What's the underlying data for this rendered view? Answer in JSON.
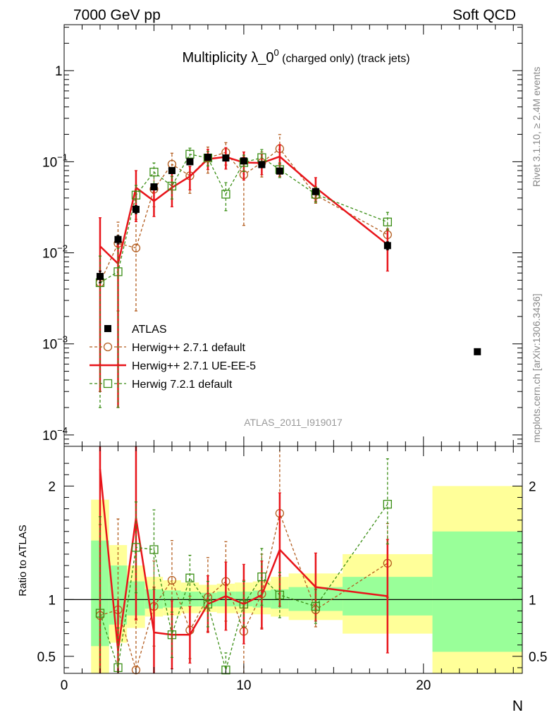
{
  "header": {
    "left": "7000 GeV pp",
    "right": "Soft QCD"
  },
  "side_labels": {
    "top": "Rivet 3.1.10, ≥ 2.4M events",
    "bottom": "mcplots.cern.ch [arXiv:1306.3436]"
  },
  "analysis_id": "ATLAS_2011_I919017",
  "chart_data": [
    {
      "type": "scatter",
      "title": {
        "main": "Multiplicity λ_0",
        "sup": "0",
        "suffix": " (charged only) (track jets)"
      },
      "yscale": "log",
      "xlim": [
        0,
        25.5
      ],
      "ylim": [
        7.5e-05,
        3.2
      ],
      "y_ticks": [
        {
          "value": 0.0001,
          "base": "10",
          "exp": "−4"
        },
        {
          "value": 0.001,
          "base": "10",
          "exp": "−3"
        },
        {
          "value": 0.01,
          "base": "10",
          "exp": "−2"
        },
        {
          "value": 0.1,
          "base": "10",
          "exp": "−1"
        },
        {
          "value": 1,
          "base": "1",
          "exp": ""
        }
      ],
      "legend_position": "middle-left",
      "series": [
        {
          "name": "ATLAS",
          "color": "#000000",
          "marker": "filled-square",
          "x": [
            2,
            3,
            4,
            5,
            6,
            7,
            8,
            9,
            10,
            11,
            12,
            14,
            18
          ],
          "y": [
            0.0055,
            0.014,
            0.03,
            0.053,
            0.08,
            0.1,
            0.112,
            0.11,
            0.102,
            0.093,
            0.079,
            0.047,
            0.012
          ],
          "err": [
            0.0008,
            0.0015,
            0.003,
            0.004,
            0.005,
            0.006,
            0.007,
            0.007,
            0.006,
            0.006,
            0.005,
            0.003,
            0.0012
          ]
        },
        {
          "name": "Herwig++ 2.7.1 default",
          "color": "#b35c1e",
          "marker": "open-circle",
          "line": "dashed",
          "x": [
            2,
            3,
            4,
            5,
            6,
            7,
            8,
            9,
            10,
            11,
            12,
            14,
            18
          ],
          "y": [
            0.0047,
            0.0127,
            0.0113,
            0.05,
            0.094,
            0.07,
            0.11,
            0.127,
            0.072,
            0.098,
            0.139,
            0.043,
            0.0158
          ],
          "err_lo": [
            0.0044,
            0.0104,
            0.009,
            0.018,
            0.025,
            0.025,
            0.035,
            0.035,
            0.052,
            0.03,
            0.045,
            0.008,
            0.004
          ],
          "err_hi": [
            0.0045,
            0.009,
            0.012,
            0.02,
            0.03,
            0.03,
            0.035,
            0.035,
            0.04,
            0.03,
            0.06,
            0.01,
            0.004
          ]
        },
        {
          "name": "Herwig++ 2.7.1 UE-EE-5",
          "color": "#e8141a",
          "marker": "none",
          "line": "solid",
          "x": [
            2,
            3,
            4,
            5,
            6,
            7,
            8,
            9,
            10,
            11,
            12,
            14,
            18
          ],
          "y": [
            0.0118,
            0.0076,
            0.052,
            0.037,
            0.052,
            0.069,
            0.107,
            0.113,
            0.098,
            0.097,
            0.114,
            0.052,
            0.0123
          ],
          "err_lo": [
            0.0115,
            0.0074,
            0.03,
            0.012,
            0.02,
            0.02,
            0.025,
            0.03,
            0.035,
            0.025,
            0.045,
            0.015,
            0.006
          ],
          "err_hi": [
            0.0125,
            0.006,
            0.028,
            0.015,
            0.025,
            0.02,
            0.03,
            0.03,
            0.03,
            0.025,
            0.04,
            0.015,
            0.006
          ]
        },
        {
          "name": "Herwig 7.2.1 default",
          "color": "#3a8e15",
          "marker": "open-square",
          "line": "dashed",
          "x": [
            2,
            3,
            4,
            5,
            6,
            7,
            8,
            9,
            10,
            11,
            12,
            14,
            18
          ],
          "y": [
            0.0047,
            0.0062,
            0.043,
            0.077,
            0.054,
            0.121,
            0.11,
            0.044,
            0.098,
            0.111,
            0.082,
            0.044,
            0.0218
          ],
          "err_lo": [
            0.0045,
            0.006,
            0.012,
            0.02,
            0.015,
            0.02,
            0.02,
            0.015,
            0.02,
            0.025,
            0.015,
            0.008,
            0.004
          ],
          "err_hi": [
            0.0045,
            0.005,
            0.012,
            0.02,
            0.015,
            0.02,
            0.02,
            0.015,
            0.02,
            0.025,
            0.015,
            0.008,
            0.006
          ]
        },
        {
          "name": "ATLAS",
          "color": "#000000",
          "marker": "filled-square",
          "x": [
            23
          ],
          "y": [
            0.00082
          ],
          "err": [
            0
          ]
        }
      ]
    },
    {
      "type": "scatter",
      "ylabel": "Ratio to ATLAS",
      "xlabel": "N",
      "xlim": [
        0,
        25.5
      ],
      "ylim": [
        0.35,
        2.35
      ],
      "x_ticks": [
        0,
        10,
        20
      ],
      "y_ticks": [
        0.5,
        1,
        2
      ],
      "reference": 1,
      "bands": [
        {
          "x0": 1.5,
          "x1": 2.5,
          "yellow": [
            0.35,
            1.88
          ],
          "green": [
            0.59,
            1.52
          ]
        },
        {
          "x0": 2.5,
          "x1": 3.5,
          "yellow": [
            0.62,
            1.48
          ],
          "green": [
            0.78,
            1.3
          ]
        },
        {
          "x0": 3.5,
          "x1": 4.5,
          "yellow": [
            0.75,
            1.3
          ],
          "green": [
            0.86,
            1.16
          ]
        },
        {
          "x0": 4.5,
          "x1": 5.5,
          "yellow": [
            0.85,
            1.2
          ],
          "green": [
            0.92,
            1.09
          ]
        },
        {
          "x0": 5.5,
          "x1": 6.5,
          "yellow": [
            0.86,
            1.17
          ],
          "green": [
            0.93,
            1.08
          ]
        },
        {
          "x0": 6.5,
          "x1": 7.5,
          "yellow": [
            0.88,
            1.15
          ],
          "green": [
            0.94,
            1.07
          ]
        },
        {
          "x0": 7.5,
          "x1": 8.5,
          "yellow": [
            0.89,
            1.13
          ],
          "green": [
            0.94,
            1.06
          ]
        },
        {
          "x0": 8.5,
          "x1": 9.5,
          "yellow": [
            0.88,
            1.14
          ],
          "green": [
            0.94,
            1.07
          ]
        },
        {
          "x0": 9.5,
          "x1": 10.5,
          "yellow": [
            0.88,
            1.15
          ],
          "green": [
            0.94,
            1.07
          ]
        },
        {
          "x0": 10.5,
          "x1": 11.5,
          "yellow": [
            0.87,
            1.16
          ],
          "green": [
            0.93,
            1.08
          ]
        },
        {
          "x0": 11.5,
          "x1": 12.5,
          "yellow": [
            0.85,
            1.2
          ],
          "green": [
            0.92,
            1.09
          ]
        },
        {
          "x0": 12.5,
          "x1": 15.5,
          "yellow": [
            0.82,
            1.23
          ],
          "green": [
            0.9,
            1.11
          ]
        },
        {
          "x0": 15.5,
          "x1": 20.5,
          "yellow": [
            0.7,
            1.4
          ],
          "green": [
            0.86,
            1.2
          ]
        },
        {
          "x0": 20.5,
          "x1": 25.5,
          "yellow": [
            0.35,
            2.0
          ],
          "green": [
            0.54,
            1.6
          ]
        }
      ],
      "series": [
        {
          "name": "Herwig++ 2.7.1 default",
          "x": [
            2,
            3,
            4,
            5,
            6,
            7,
            8,
            9,
            10,
            11,
            12,
            14,
            18
          ],
          "y": [
            0.86,
            0.91,
            0.38,
            0.94,
            1.17,
            0.73,
            1.02,
            1.16,
            0.72,
            1.05,
            1.76,
            0.91,
            1.32
          ],
          "err_lo": [
            0.8,
            0.8,
            0.3,
            0.35,
            0.3,
            0.25,
            0.3,
            0.35,
            0.4,
            0.3,
            0.55,
            0.15,
            0.3
          ],
          "err_hi": [
            0.8,
            0.8,
            0.45,
            0.4,
            0.35,
            0.3,
            0.35,
            0.35,
            0.45,
            0.35,
            0.65,
            0.2,
            0.35
          ]
        },
        {
          "name": "Herwig++ 2.7.1 UE-EE-5",
          "x": [
            2,
            3,
            4,
            5,
            6,
            7,
            8,
            9,
            10,
            11,
            12,
            14,
            18
          ],
          "y": [
            2.15,
            0.55,
            1.72,
            0.71,
            0.69,
            0.69,
            0.96,
            1.03,
            0.96,
            1.04,
            1.44,
            1.11,
            1.03
          ],
          "err_lo": [
            2.1,
            0.45,
            0.9,
            0.4,
            0.3,
            0.25,
            0.25,
            0.3,
            0.35,
            0.3,
            0.5,
            0.3,
            0.5
          ],
          "err_hi": [
            2.1,
            0.45,
            1.0,
            0.4,
            0.3,
            0.25,
            0.25,
            0.3,
            0.35,
            0.3,
            0.5,
            0.3,
            0.5
          ]
        },
        {
          "name": "Herwig 7.2.1 default",
          "x": [
            2,
            3,
            4,
            5,
            6,
            7,
            8,
            9,
            10,
            11,
            12,
            14,
            18
          ],
          "y": [
            0.88,
            0.4,
            1.46,
            1.44,
            0.69,
            1.19,
            0.96,
            0.38,
            0.96,
            1.2,
            1.04,
            0.94,
            1.84
          ],
          "err_lo": [
            0.85,
            0.35,
            0.4,
            0.35,
            0.2,
            0.2,
            0.2,
            0.15,
            0.2,
            0.25,
            0.2,
            0.15,
            0.35
          ],
          "err_hi": [
            0.85,
            0.35,
            0.4,
            0.35,
            0.2,
            0.2,
            0.2,
            0.15,
            0.2,
            0.25,
            0.2,
            0.15,
            0.4
          ]
        }
      ]
    }
  ]
}
